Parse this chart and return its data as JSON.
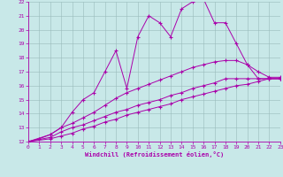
{
  "title": "",
  "xlabel": "Windchill (Refroidissement éolien,°C)",
  "xlim": [
    0,
    23
  ],
  "ylim": [
    12,
    22
  ],
  "xticks": [
    0,
    1,
    2,
    3,
    4,
    5,
    6,
    7,
    8,
    9,
    10,
    11,
    12,
    13,
    14,
    15,
    16,
    17,
    18,
    19,
    20,
    21,
    22,
    23
  ],
  "yticks": [
    12,
    13,
    14,
    15,
    16,
    17,
    18,
    19,
    20,
    21,
    22
  ],
  "bg_color": "#c8e8e8",
  "line_color": "#aa00aa",
  "grid_color": "#99bbbb",
  "lines": [
    {
      "x": [
        0,
        1,
        2,
        3,
        4,
        5,
        6,
        7,
        8,
        9,
        10,
        11,
        12,
        13,
        14,
        15,
        16,
        17,
        18,
        19,
        20,
        21,
        22,
        23
      ],
      "y": [
        12,
        12.2,
        12.5,
        13.0,
        14.1,
        15.0,
        15.5,
        17.0,
        18.5,
        15.8,
        19.5,
        21.0,
        20.5,
        19.5,
        21.5,
        22.0,
        22.2,
        20.5,
        20.5,
        19.0,
        17.5,
        16.5,
        16.5,
        16.5
      ]
    },
    {
      "x": [
        0,
        2,
        3,
        4,
        5,
        6,
        7,
        8,
        9,
        10,
        11,
        12,
        13,
        14,
        15,
        16,
        17,
        18,
        19,
        20,
        21,
        22,
        23
      ],
      "y": [
        12,
        12.5,
        13.0,
        13.3,
        13.7,
        14.1,
        14.6,
        15.1,
        15.5,
        15.8,
        16.1,
        16.4,
        16.7,
        17.0,
        17.3,
        17.5,
        17.7,
        17.8,
        17.8,
        17.5,
        17.0,
        16.6,
        16.6
      ]
    },
    {
      "x": [
        0,
        2,
        3,
        4,
        5,
        6,
        7,
        8,
        9,
        10,
        11,
        12,
        13,
        14,
        15,
        16,
        17,
        18,
        19,
        20,
        21,
        22,
        23
      ],
      "y": [
        12,
        12.3,
        12.7,
        13.0,
        13.2,
        13.5,
        13.8,
        14.1,
        14.3,
        14.6,
        14.8,
        15.0,
        15.3,
        15.5,
        15.8,
        16.0,
        16.2,
        16.5,
        16.5,
        16.5,
        16.5,
        16.5,
        16.5
      ]
    },
    {
      "x": [
        0,
        2,
        3,
        4,
        5,
        6,
        7,
        8,
        9,
        10,
        11,
        12,
        13,
        14,
        15,
        16,
        17,
        18,
        19,
        20,
        21,
        22,
        23
      ],
      "y": [
        12,
        12.2,
        12.4,
        12.6,
        12.9,
        13.1,
        13.4,
        13.6,
        13.9,
        14.1,
        14.3,
        14.5,
        14.7,
        15.0,
        15.2,
        15.4,
        15.6,
        15.8,
        16.0,
        16.1,
        16.3,
        16.5,
        16.5
      ]
    }
  ]
}
